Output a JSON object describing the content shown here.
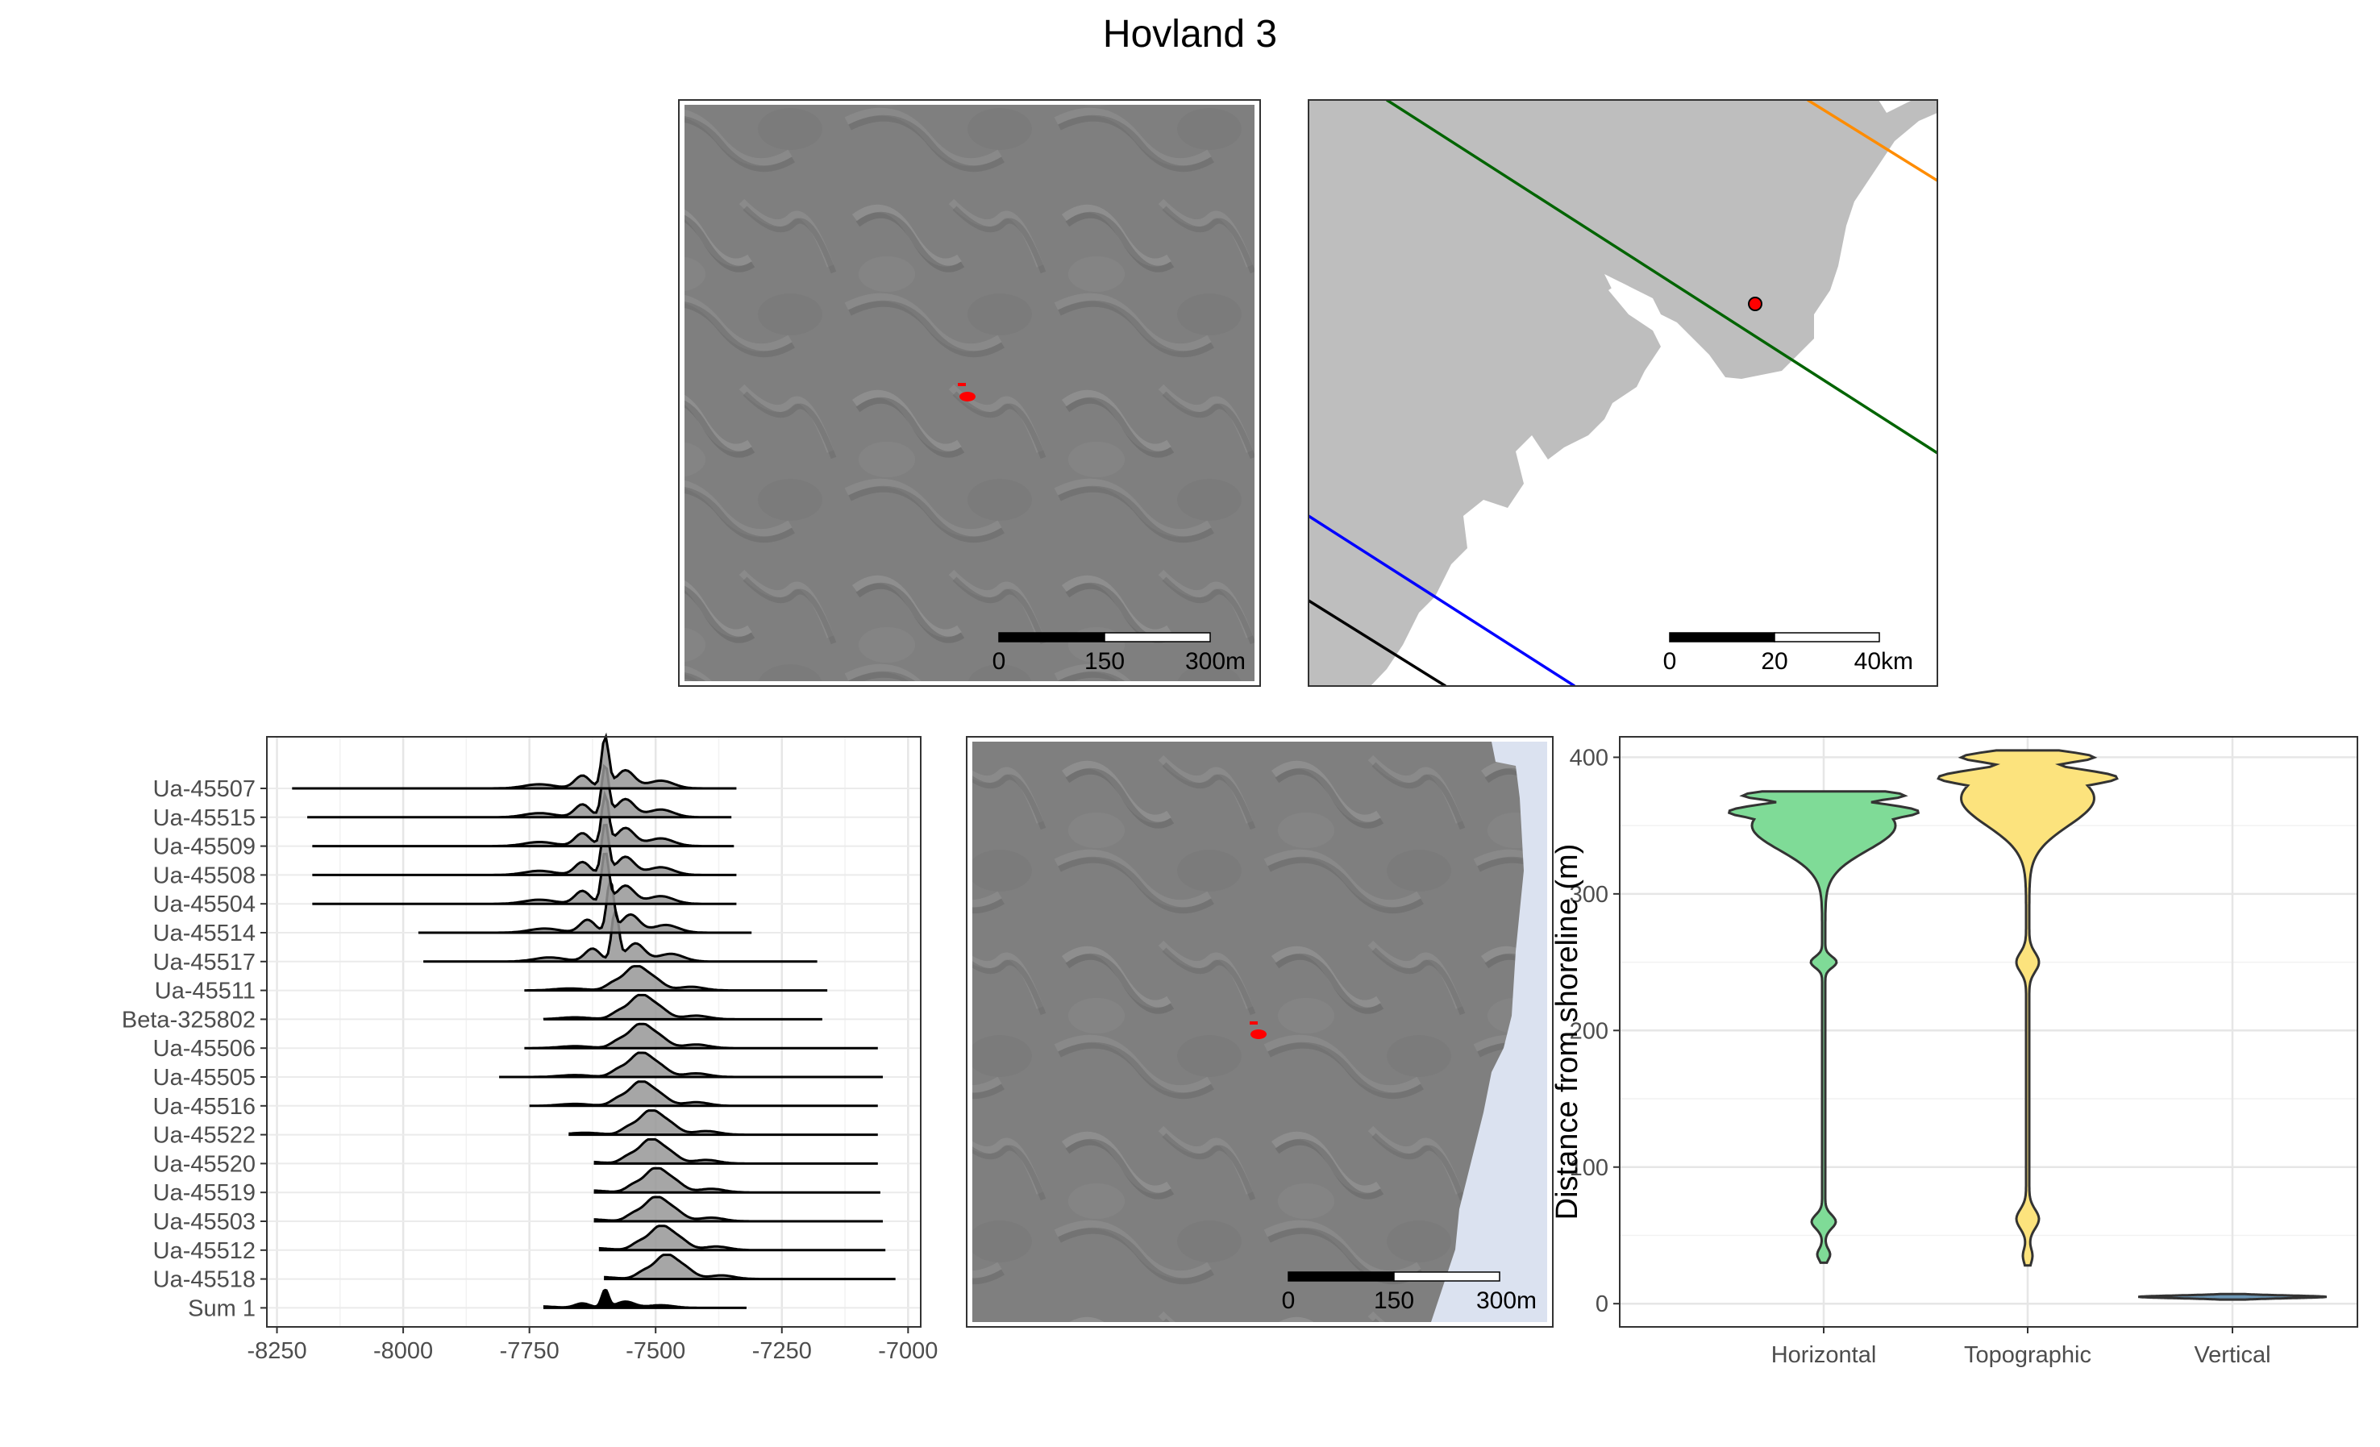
{
  "figure": {
    "title": "Hovland 3",
    "colors": {
      "panel_border": "#333333",
      "grid_major": "#e6e6e6",
      "grid_minor": "#f2f2f2",
      "hillshade": "#808080",
      "site_marker": "#ff0000",
      "map_land": "#bebebe",
      "sea_overlay": "#dbe2f0"
    }
  },
  "map_local": {
    "scalebar_labels": [
      "0",
      "150",
      "300m"
    ]
  },
  "map_regional": {
    "scalebar_labels": [
      "0",
      "20",
      "40km"
    ],
    "line_colors": [
      "#006400",
      "#ff8c00",
      "#0000ff",
      "#000000"
    ],
    "marker_color": "#ff0000"
  },
  "map_sea": {
    "scalebar_labels": [
      "0",
      "150",
      "300m"
    ]
  },
  "chart_data": [
    {
      "type": "ridgeline",
      "categories": [
        "Ua-45507",
        "Ua-45515",
        "Ua-45509",
        "Ua-45508",
        "Ua-45504",
        "Ua-45514",
        "Ua-45517",
        "Ua-45511",
        "Beta-325802",
        "Ua-45506",
        "Ua-45505",
        "Ua-45516",
        "Ua-45522",
        "Ua-45520",
        "Ua-45519",
        "Ua-45503",
        "Ua-45512",
        "Ua-45518",
        "Sum 1"
      ],
      "ranges": [
        [
          -8220,
          -7340
        ],
        [
          -8190,
          -7350
        ],
        [
          -8180,
          -7345
        ],
        [
          -8180,
          -7340
        ],
        [
          -8180,
          -7340
        ],
        [
          -7970,
          -7310
        ],
        [
          -7960,
          -7180
        ],
        [
          -7760,
          -7160
        ],
        [
          -7720,
          -7170
        ],
        [
          -7760,
          -7060
        ],
        [
          -7810,
          -7050
        ],
        [
          -7750,
          -7060
        ],
        [
          -7670,
          -7060
        ],
        [
          -7620,
          -7060
        ],
        [
          -7620,
          -7055
        ],
        [
          -7620,
          -7050
        ],
        [
          -7610,
          -7045
        ],
        [
          -7600,
          -7025
        ],
        [
          -7720,
          -7320
        ]
      ],
      "modes": [
        -7600,
        -7600,
        -7600,
        -7600,
        -7600,
        -7590,
        -7580,
        -7540,
        -7530,
        -7530,
        -7530,
        -7530,
        -7510,
        -7510,
        -7500,
        -7500,
        -7490,
        -7480,
        -7600
      ],
      "xlim": [
        -8270,
        -6975
      ],
      "xticks": [
        -8250,
        -8000,
        -7750,
        -7500,
        -7250,
        -7000
      ],
      "xtick_labels": [
        "-8250",
        "-8000",
        "-7750",
        "-7500",
        "-7250",
        "-7000"
      ]
    },
    {
      "type": "violin",
      "categories": [
        "Horizontal",
        "Topographic",
        "Vertical"
      ],
      "ylabel": "Distance from shoreline (m)",
      "ylim": [
        -17,
        415
      ],
      "yticks": [
        0,
        100,
        200,
        300,
        400
      ],
      "ytick_labels": [
        "0",
        "100",
        "200",
        "300",
        "400"
      ],
      "fill_colors": [
        "#7fdb97",
        "#fce37d",
        "#6b96b5"
      ],
      "value_ranges": [
        [
          30,
          375
        ],
        [
          28,
          405
        ],
        [
          3,
          7
        ]
      ],
      "main_modes": [
        360,
        385,
        5
      ]
    }
  ]
}
